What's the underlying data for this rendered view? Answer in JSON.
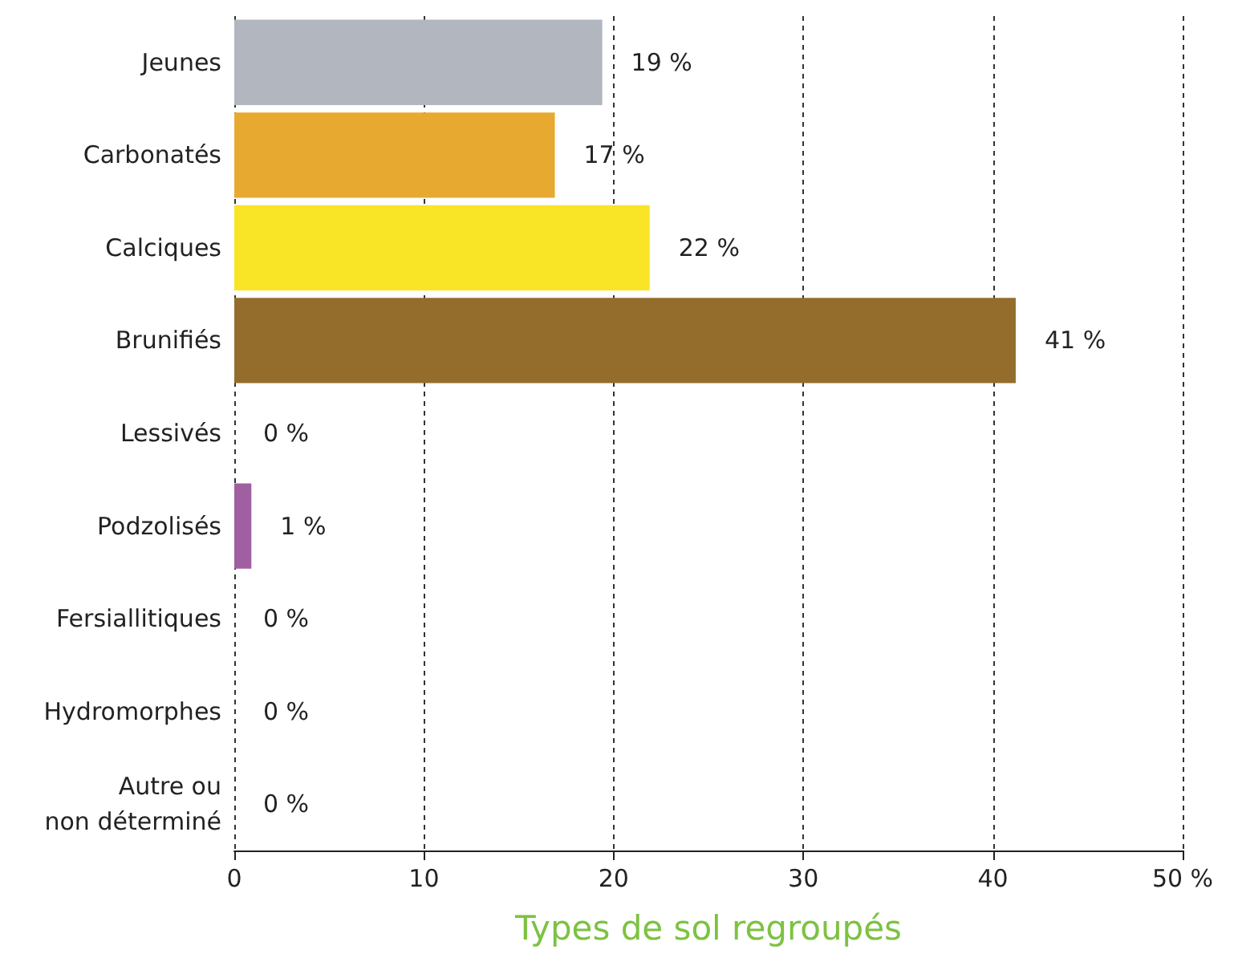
{
  "chart_data": {
    "type": "bar",
    "orientation": "horizontal",
    "xlabel": "Types de sol regroupés",
    "categories": [
      "Jeunes",
      "Carbonatés",
      "Calciques",
      "Brunifiés",
      "Lessivés",
      "Podzolisés",
      "Fersiallitiques",
      "Hydromorphes",
      "Autre ou\nnon déterminé"
    ],
    "values": [
      19.4,
      16.9,
      21.9,
      41.2,
      0,
      0.9,
      0,
      0,
      0
    ],
    "colors": [
      "#b1b6bf",
      "#e8a930",
      "#f9e425",
      "#946d2c",
      null,
      "#a05fa0",
      null,
      null,
      null
    ],
    "value_labels": [
      "19 %",
      "17 %",
      "22 %",
      "41 %",
      "0 %",
      "1 %",
      "0 %",
      "0 %",
      "0 %"
    ],
    "xlim": [
      0,
      50
    ],
    "xticks": [
      0,
      10,
      20,
      30,
      40,
      {
        "value": 50,
        "label": "50 %"
      }
    ],
    "grid": "x"
  }
}
